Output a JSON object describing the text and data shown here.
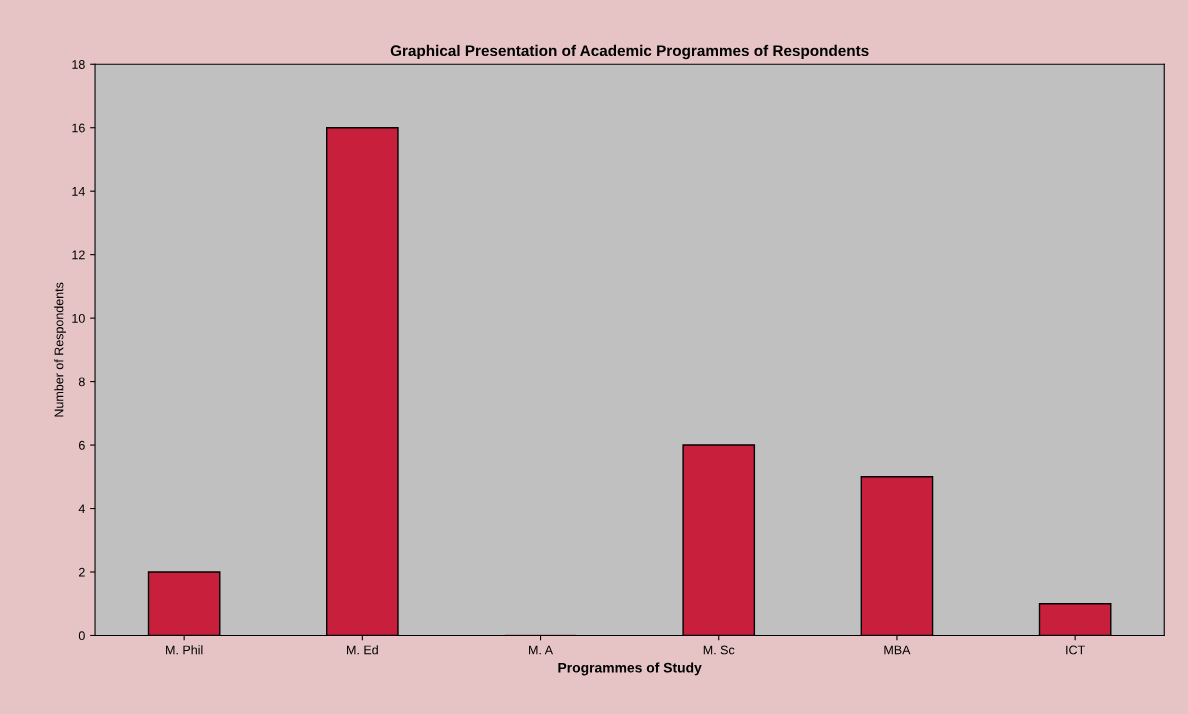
{
  "chart_data": {
    "type": "bar",
    "title": "Graphical Presentation of Academic Programmes of Respondents",
    "xlabel": "Programmes of Study",
    "ylabel": "Number of Respondents",
    "categories": [
      "M. Phil",
      "M. Ed",
      "M. A",
      "M. Sc",
      "MBA",
      "ICT"
    ],
    "values": [
      2,
      16,
      0,
      6,
      5,
      1
    ],
    "color": "#c8203c",
    "ylim": [
      0,
      18
    ],
    "yticks": [
      0,
      2,
      4,
      6,
      8,
      10,
      12,
      14,
      16,
      18
    ],
    "grid": false,
    "legend": false
  }
}
